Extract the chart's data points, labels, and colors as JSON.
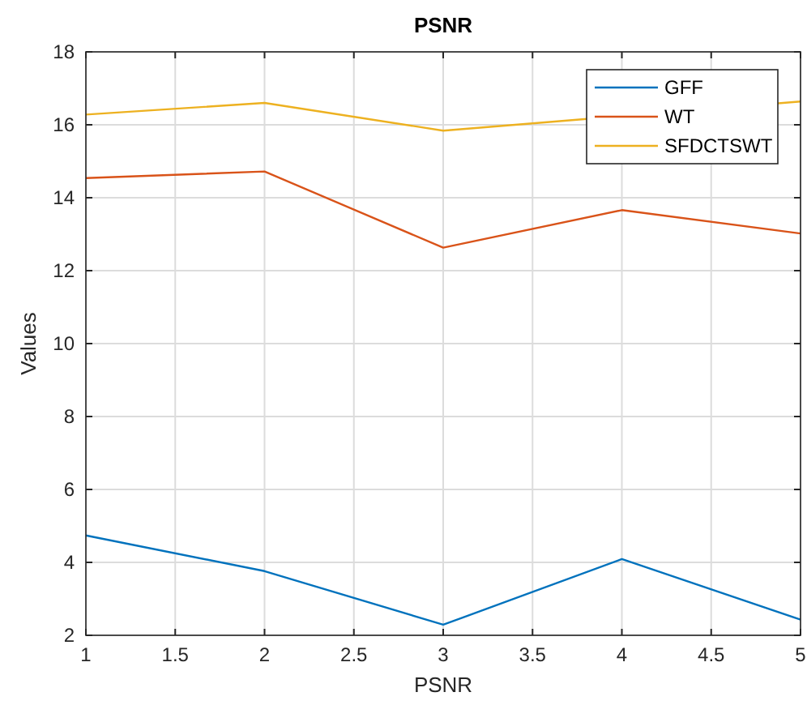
{
  "chart_data": {
    "type": "line",
    "title": "PSNR",
    "xlabel": "PSNR",
    "ylabel": "Values",
    "x": [
      1,
      2,
      3,
      4,
      5
    ],
    "series": [
      {
        "name": "GFF",
        "color": "#0072bd",
        "values": [
          4.74,
          3.76,
          2.29,
          4.09,
          2.43
        ]
      },
      {
        "name": "WT",
        "color": "#d95319",
        "values": [
          14.54,
          14.72,
          12.63,
          13.66,
          13.02
        ]
      },
      {
        "name": "SFDCTSWT",
        "color": "#edb120",
        "values": [
          16.28,
          16.6,
          15.84,
          null,
          16.64
        ]
      }
    ],
    "xlim": [
      1,
      5
    ],
    "xticks": [
      1,
      1.5,
      2,
      2.5,
      3,
      3.5,
      4,
      4.5,
      5
    ],
    "ylim": [
      2,
      18
    ],
    "yticks": [
      2,
      4,
      6,
      8,
      10,
      12,
      14,
      16,
      18
    ],
    "grid": true,
    "legend": "top right",
    "marker": "none",
    "line_style": "solid"
  }
}
